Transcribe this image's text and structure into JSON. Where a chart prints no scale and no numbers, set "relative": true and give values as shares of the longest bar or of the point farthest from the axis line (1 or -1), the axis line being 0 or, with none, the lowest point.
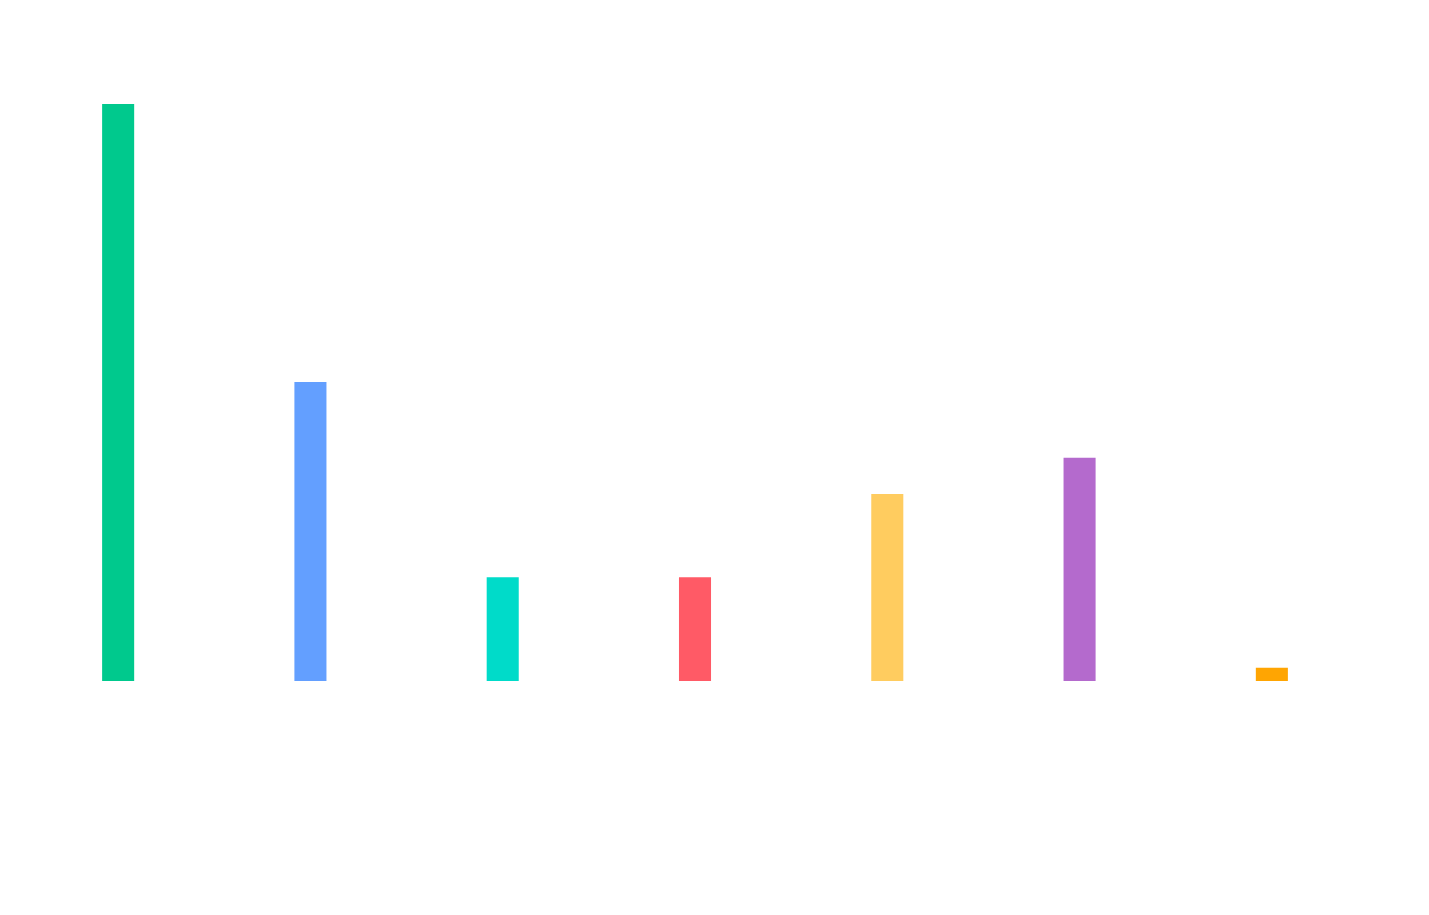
{
  "chart_data": {
    "type": "bar",
    "relative": true,
    "categories": [
      null,
      null,
      null,
      null,
      null,
      null,
      null
    ],
    "values": [
      1,
      0.518,
      0.18,
      0.18,
      0.324,
      0.387,
      0.023
    ],
    "colors": [
      "#00c98d",
      "#639fff",
      "#00dbc9",
      "#ff5a66",
      "#ffcc5f",
      "#b46acd",
      "#ffa502"
    ]
  }
}
